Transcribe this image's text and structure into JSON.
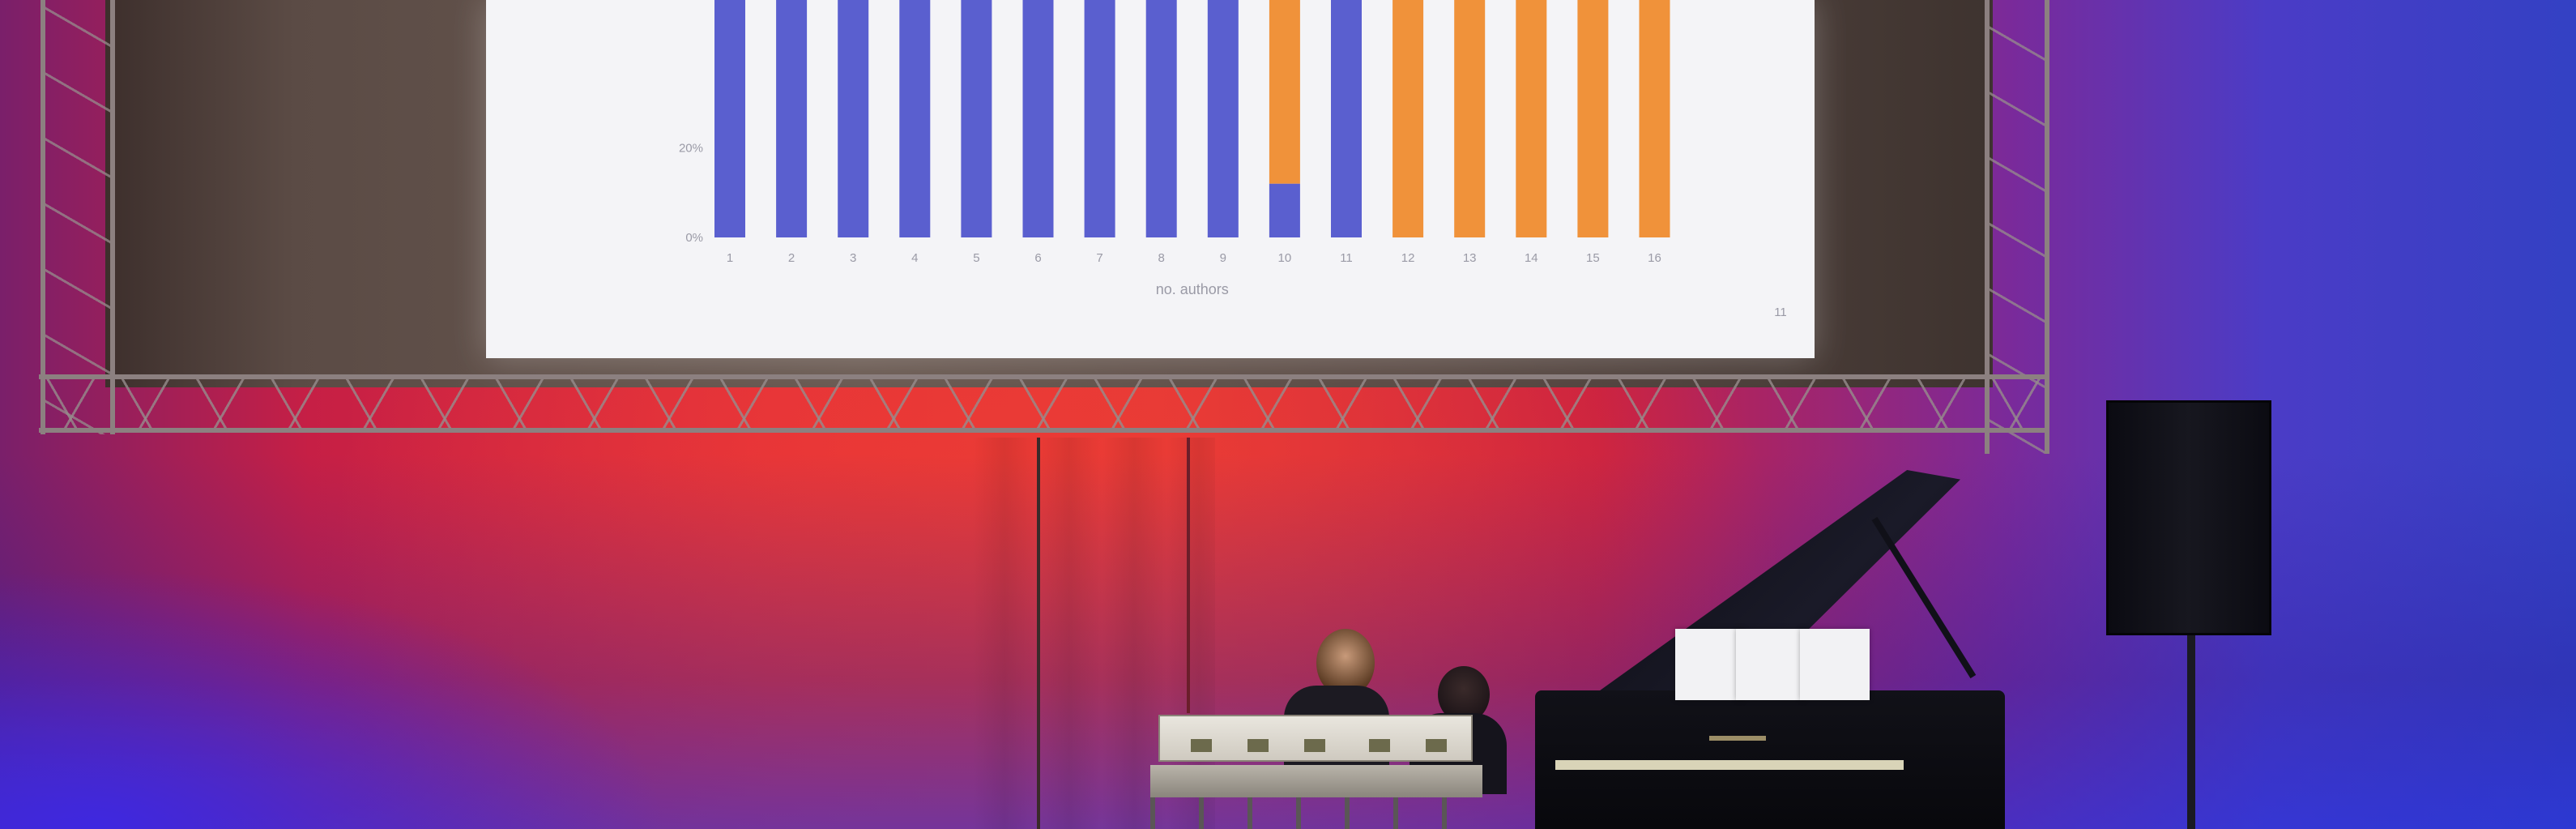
{
  "scene": {
    "description_free": true
  },
  "slide": {
    "chart_data": {
      "type": "bar",
      "stacked": true,
      "xlabel": "no. authors",
      "ylabel": "",
      "ytick_labels": [
        "0%",
        "20%"
      ],
      "ylim": [
        0,
        100
      ],
      "grid": false,
      "legend": "none",
      "categories": [
        "1",
        "2",
        "3",
        "4",
        "5",
        "6",
        "7",
        "8",
        "9",
        "10",
        "11",
        "12",
        "13",
        "14",
        "15",
        "16"
      ],
      "series": [
        {
          "color": "#5a5fcf",
          "values": [
            100,
            100,
            100,
            100,
            100,
            100,
            100,
            80,
            100,
            12,
            86,
            0,
            0,
            0,
            0,
            0
          ]
        },
        {
          "color": "#f0923a",
          "values": [
            0,
            0,
            0,
            0,
            0,
            0,
            0,
            20,
            0,
            88,
            14,
            100,
            100,
            100,
            100,
            100
          ]
        }
      ],
      "page_number": "11"
    }
  },
  "colors": {
    "slide_background": "#f4f4f7",
    "blue_series": "#5a5fcf",
    "orange_series": "#f0923a"
  }
}
